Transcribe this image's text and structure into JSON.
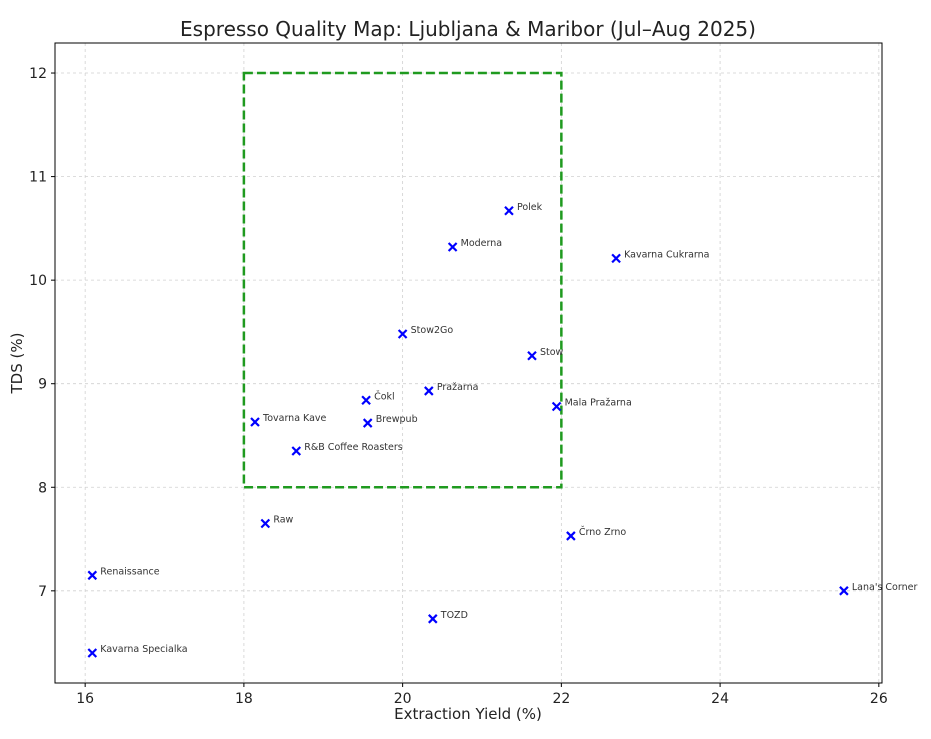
{
  "chart_data": {
    "type": "scatter",
    "title": "Espresso Quality Map: Ljubljana & Maribor (Jul–Aug 2025)",
    "xlabel": "Extraction Yield (%)",
    "ylabel": "TDS (%)",
    "xlim": [
      15.62,
      26.04
    ],
    "ylim": [
      6.11,
      12.29
    ],
    "xticks": [
      16,
      18,
      20,
      22,
      24,
      26
    ],
    "yticks": [
      7,
      8,
      9,
      10,
      11,
      12
    ],
    "grid": true,
    "marker": "x",
    "marker_color": "#0000ff",
    "target_box": {
      "x": [
        18,
        22
      ],
      "y": [
        8,
        12
      ],
      "color": "#1f9a1f",
      "style": "dashed"
    },
    "points": [
      {
        "name": "Polek",
        "x": 21.34,
        "y": 10.67
      },
      {
        "name": "Moderna",
        "x": 20.63,
        "y": 10.32
      },
      {
        "name": "Kavarna Cukrarna",
        "x": 22.69,
        "y": 10.21
      },
      {
        "name": "Stow2Go",
        "x": 20.0,
        "y": 9.48
      },
      {
        "name": "Stow",
        "x": 21.63,
        "y": 9.27
      },
      {
        "name": "Pražarna",
        "x": 20.33,
        "y": 8.93
      },
      {
        "name": "Čokl",
        "x": 19.54,
        "y": 8.84
      },
      {
        "name": "Mala Pražarna",
        "x": 21.94,
        "y": 8.78
      },
      {
        "name": "Tovarna Kave",
        "x": 18.14,
        "y": 8.63
      },
      {
        "name": "Brewpub",
        "x": 19.56,
        "y": 8.62
      },
      {
        "name": "R&B Coffee Roasters",
        "x": 18.66,
        "y": 8.35
      },
      {
        "name": "Raw",
        "x": 18.27,
        "y": 7.65
      },
      {
        "name": "Črno Zrno",
        "x": 22.12,
        "y": 7.53
      },
      {
        "name": "Renaissance",
        "x": 16.09,
        "y": 7.15
      },
      {
        "name": "Lana's Corner",
        "x": 25.56,
        "y": 7.0
      },
      {
        "name": "TOZD",
        "x": 20.38,
        "y": 6.73
      },
      {
        "name": "Kavarna Specialka",
        "x": 16.09,
        "y": 6.4
      }
    ]
  }
}
